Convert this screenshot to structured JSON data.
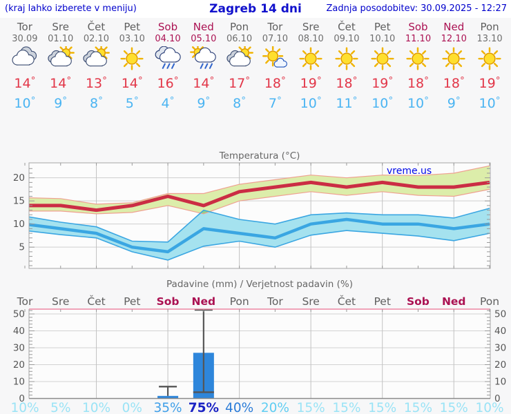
{
  "header": {
    "left_note": "(kraj lahko izberete v meniju)",
    "title": "Zagreb 14 dni",
    "updated": "Zadnja posodobitev: 30.09.2025 - 12:27"
  },
  "watermark": "vreme.us",
  "degree_symbol": "°",
  "colors": {
    "header_blue": "#0000cc",
    "weekend_red": "#ab1152",
    "weekday_gray": "#5f5f5f",
    "high_temp_red": "#e23648",
    "low_temp_blue": "#4ab4f2",
    "temp_line_red": "#cb2d44",
    "temp_line_blue": "#3aa6e2",
    "band_green": "#dcedaa",
    "band_green_edge": "#efa191",
    "band_blue": "#a5e2ef",
    "band_overlap_green": "#8ed089",
    "bar_blue": "#2e86db",
    "whisker_gray": "#555555",
    "precip_top_border_pink": "#ec86a2"
  },
  "forecast": {
    "days": [
      {
        "name": "Tor",
        "date": "30.09",
        "weekend": false,
        "icon": "cloudy",
        "high": 14,
        "low": 10,
        "precip_prob_pct": 10
      },
      {
        "name": "Sre",
        "date": "01.10",
        "weekend": false,
        "icon": "sun-clouds",
        "high": 14,
        "low": 9,
        "precip_prob_pct": 5
      },
      {
        "name": "Čet",
        "date": "02.10",
        "weekend": false,
        "icon": "sun-clouds",
        "high": 13,
        "low": 8,
        "precip_prob_pct": 10
      },
      {
        "name": "Pet",
        "date": "03.10",
        "weekend": false,
        "icon": "sun",
        "high": 14,
        "low": 5,
        "precip_prob_pct": 0
      },
      {
        "name": "Sob",
        "date": "04.10",
        "weekend": true,
        "icon": "rain",
        "high": 16,
        "low": 4,
        "precip_prob_pct": 35
      },
      {
        "name": "Ned",
        "date": "05.10",
        "weekend": true,
        "icon": "sun-rain",
        "high": 14,
        "low": 9,
        "precip_prob_pct": 75
      },
      {
        "name": "Pon",
        "date": "06.10",
        "weekend": false,
        "icon": "sun-clouds",
        "high": 17,
        "low": 8,
        "precip_prob_pct": 40
      },
      {
        "name": "Tor",
        "date": "07.10",
        "weekend": false,
        "icon": "sun-small-cloud",
        "high": 18,
        "low": 7,
        "precip_prob_pct": 20
      },
      {
        "name": "Sre",
        "date": "08.10",
        "weekend": false,
        "icon": "sun",
        "high": 19,
        "low": 10,
        "precip_prob_pct": 15
      },
      {
        "name": "Čet",
        "date": "09.10",
        "weekend": false,
        "icon": "sun",
        "high": 18,
        "low": 11,
        "precip_prob_pct": 15
      },
      {
        "name": "Pet",
        "date": "10.10",
        "weekend": false,
        "icon": "sun",
        "high": 19,
        "low": 10,
        "precip_prob_pct": 15
      },
      {
        "name": "Sob",
        "date": "11.10",
        "weekend": true,
        "icon": "sun",
        "high": 18,
        "low": 10,
        "precip_prob_pct": 15
      },
      {
        "name": "Ned",
        "date": "12.10",
        "weekend": true,
        "icon": "sun",
        "high": 18,
        "low": 9,
        "precip_prob_pct": 15
      },
      {
        "name": "Pon",
        "date": "13.10",
        "weekend": false,
        "icon": "sun",
        "high": 19,
        "low": 10,
        "precip_prob_pct": 10
      }
    ]
  },
  "chart_data": [
    {
      "type": "line",
      "title": "Temperatura (°C)",
      "x_labels": [
        "Tor 30.09",
        "Sre 01.10",
        "Čet 02.10",
        "Pet 03.10",
        "Sob 04.10",
        "Ned 05.10",
        "Pon 06.10",
        "Tor 07.10",
        "Sre 08.10",
        "Čet 09.10",
        "Pet 10.10",
        "Sob 11.10",
        "Ned 12.10",
        "Pon 13.10"
      ],
      "ylim": [
        0.4,
        23.2
      ],
      "yticks": [
        5,
        10,
        15,
        20
      ],
      "grid": true,
      "series": [
        {
          "name": "high",
          "values": [
            14,
            14,
            13,
            14,
            16,
            14,
            17,
            18,
            19,
            18,
            19,
            18,
            18,
            19
          ]
        },
        {
          "name": "high_band_upper",
          "values": [
            15.7,
            15.5,
            14.3,
            14.6,
            16.6,
            16.6,
            18.6,
            19.6,
            20.6,
            20.0,
            20.6,
            20.5,
            21.0,
            22.6
          ]
        },
        {
          "name": "high_band_lower",
          "values": [
            12.8,
            12.8,
            12.2,
            12.5,
            14.0,
            12.2,
            15.0,
            16.0,
            17.0,
            16.2,
            17.0,
            16.2,
            16.0,
            17.5
          ]
        },
        {
          "name": "low",
          "values": [
            10,
            9,
            8,
            5,
            4,
            9,
            8,
            7,
            10,
            11,
            10,
            10,
            9,
            10
          ]
        },
        {
          "name": "low_band_upper",
          "values": [
            11.7,
            10.4,
            9.4,
            6.3,
            6.1,
            13.0,
            11.0,
            10.0,
            12.0,
            12.4,
            12.0,
            12.0,
            11.3,
            13.4
          ]
        },
        {
          "name": "low_band_lower",
          "values": [
            8.6,
            7.7,
            7.0,
            4.0,
            2.2,
            5.2,
            6.3,
            5.0,
            7.6,
            8.6,
            8.0,
            7.4,
            6.4,
            8.0
          ]
        }
      ]
    },
    {
      "type": "bar",
      "title": "Padavine (mm) / Verjetnost padavin (%)",
      "categories": [
        "Tor",
        "Sre",
        "Čet",
        "Pet",
        "Sob",
        "Ned",
        "Pon",
        "Tor",
        "Sre",
        "Čet",
        "Pet",
        "Sob",
        "Ned",
        "Pon"
      ],
      "values_mm": [
        0,
        0,
        0,
        0,
        1.5,
        27,
        0,
        0,
        0,
        0,
        0,
        0,
        0,
        0
      ],
      "whiskers": [
        {
          "day_index": 4,
          "from_mm": 1.5,
          "to_mm": 7
        },
        {
          "day_index": 5,
          "from_mm": 3.7,
          "to_mm": 53
        }
      ],
      "probabilities_pct": [
        10,
        5,
        10,
        0,
        35,
        75,
        40,
        20,
        15,
        15,
        15,
        15,
        15,
        10
      ],
      "ylim": [
        0,
        53
      ],
      "yticks": [
        0,
        10,
        20,
        30,
        40,
        50
      ],
      "grid": true,
      "yaxis_labels": "both-sides"
    }
  ]
}
